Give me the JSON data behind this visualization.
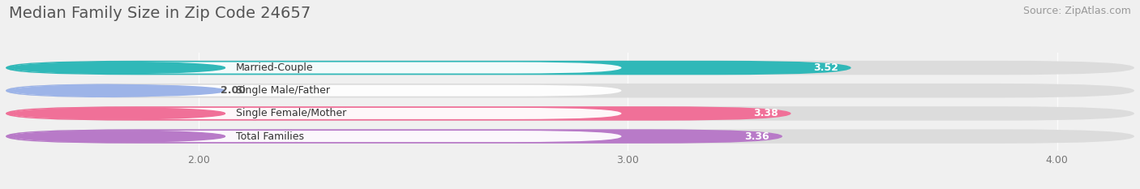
{
  "title": "Median Family Size in Zip Code 24657",
  "source": "Source: ZipAtlas.com",
  "categories": [
    "Married-Couple",
    "Single Male/Father",
    "Single Female/Mother",
    "Total Families"
  ],
  "values": [
    3.52,
    2.0,
    3.38,
    3.36
  ],
  "bar_colors": [
    "#30b8b8",
    "#9db4e8",
    "#f07098",
    "#b87ac8"
  ],
  "xlim": [
    1.55,
    4.18
  ],
  "xticks": [
    2.0,
    3.0,
    4.0
  ],
  "xtick_labels": [
    "2.00",
    "3.00",
    "4.00"
  ],
  "background_color": "#f0f0f0",
  "bar_bg_color": "#dcdcdc",
  "title_fontsize": 14,
  "source_fontsize": 9,
  "bar_height": 0.62,
  "value_label_fontsize": 9
}
